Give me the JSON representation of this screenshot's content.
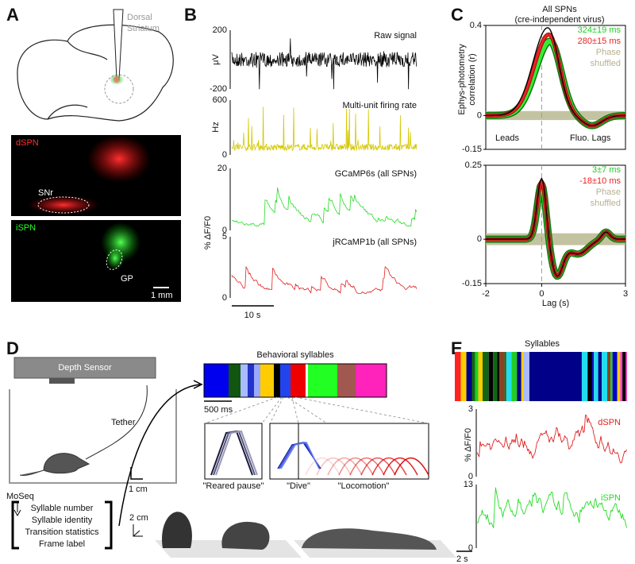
{
  "panels": {
    "A": {
      "letter": "A",
      "region": [
        "Dorsal",
        "Striatum"
      ],
      "images": [
        {
          "label": "dSPN",
          "region": "SNr"
        },
        {
          "label": "iSPN",
          "region": "GP"
        }
      ],
      "scale": "1 mm"
    },
    "B": {
      "letter": "B",
      "shared_unit": "% ΔF/F0",
      "scale": "10 s",
      "traces": [
        {
          "label": "Raw signal",
          "unit": "μV",
          "ticks": [
            200,
            -200
          ]
        },
        {
          "label": "Multi-unit firing rate",
          "unit": "Hz",
          "ticks": [
            600,
            0
          ]
        },
        {
          "label": "GCaMP6s (all SPNs)",
          "ticks": [
            20,
            0
          ]
        },
        {
          "label": "jRCaMP1b (all SPNs)",
          "ticks": [
            5,
            0
          ]
        }
      ]
    },
    "C": {
      "letter": "C",
      "title": [
        "All SPNs",
        "(cre-independent virus)"
      ],
      "y_label": [
        "Ephys-photometry",
        "correlation (r)"
      ],
      "top": {
        "yticks": [
          0.4,
          0,
          -0.15
        ],
        "legend": [
          "324±19 ms",
          "280±15 ms",
          "Phase",
          "shuffled"
        ],
        "annotations": [
          "Leads",
          "Fluo. Lags"
        ]
      },
      "bottom": {
        "yticks": [
          0.25,
          0,
          -0.15
        ],
        "legend": [
          "3±7 ms",
          "-18±10 ms",
          "Phase",
          "shuffled"
        ]
      },
      "xticks": [
        -2,
        0,
        3
      ],
      "x_label": "Lag (s)"
    },
    "D": {
      "letter": "D",
      "sensor": "Depth Sensor",
      "tether": "Tether",
      "method": "MoSeq",
      "bar_title": "Behavioral syllables",
      "bar_scale": "500 ms",
      "poses": [
        "\"Reared pause\"",
        "\"Dive\"",
        "\"Locomotion\""
      ],
      "pose_scale": "1 cm",
      "mouse_scale": "2 cm",
      "outputs": [
        "Syllable number",
        "Syllable identity",
        "Transition statistics",
        "Frame label"
      ]
    },
    "E": {
      "letter": "E",
      "bar_title": "Syllables",
      "y_label": "% ΔF/F0",
      "scale": "2 s",
      "traces": [
        {
          "label": "dSPN",
          "ticks": [
            3,
            0
          ]
        },
        {
          "label": "iSPN",
          "ticks": [
            13,
            0
          ]
        }
      ]
    }
  }
}
